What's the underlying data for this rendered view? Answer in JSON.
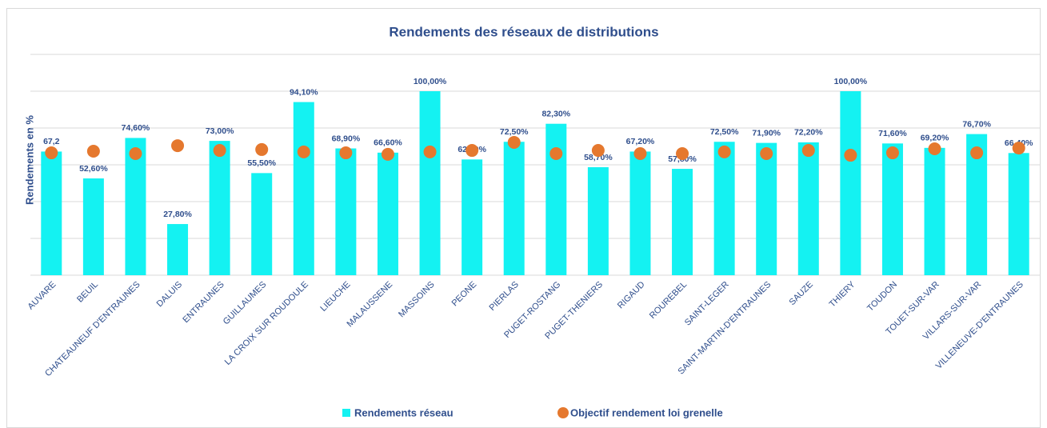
{
  "chart_data": {
    "type": "bar",
    "title": "Rendements des réseaux de distributions",
    "y_label": "Rendements en %",
    "categories": [
      "AUVARE",
      "BEUIL",
      "CHATEAUNEUF D'ENTRAUNES",
      "DALUIS",
      "ENTRAUNES",
      "GUILLAUMES",
      "LA CROIX SUR ROUDOULE",
      "LIEUCHE",
      "MALAUSSENE",
      "MASSOINS",
      "PEONE",
      "PIERLAS",
      "PUGET-ROSTANG",
      "PUGET-THENIERS",
      "RIGAUD",
      "ROUREBEL",
      "SAINT-LEGER",
      "SAINT-MARTIN-D'ENTRAUNES",
      "SAUZE",
      "THIERY",
      "TOUDON",
      "TOUET-SUR-VAR",
      "VILLARS-SUR-VAR",
      "VILLENEUVE-D'ENTRAUNES"
    ],
    "series": [
      {
        "name": "Rendements réseau",
        "color": "#14f2f2",
        "type": "bar",
        "values": [
          67.2,
          52.6,
          74.6,
          27.8,
          73.0,
          55.5,
          94.1,
          68.9,
          66.6,
          100.0,
          62.9,
          72.5,
          82.3,
          58.7,
          67.2,
          57.8,
          72.5,
          71.9,
          72.2,
          100.0,
          71.6,
          69.2,
          76.7,
          66.4
        ],
        "value_labels": [
          "67,2",
          "52,60%",
          "74,60%",
          "27,80%",
          "73,00%",
          "55,50%",
          "94,10%",
          "68,90%",
          "66,60%",
          "100,00%",
          "62,90%",
          "72,50%",
          "82,30%",
          "58,70%",
          "67,20%",
          "57,80%",
          "72,50%",
          "71,90%",
          "72,20%",
          "100,00%",
          "71,60%",
          "69,20%",
          "76,70%",
          "66,40%"
        ]
      },
      {
        "name": "Objectif rendement loi grenelle",
        "color": "#e5782e",
        "type": "scatter",
        "values": [
          66.5,
          67.4,
          66.1,
          70.4,
          67.8,
          68.3,
          67.0,
          66.5,
          65.7,
          67.0,
          67.8,
          72.2,
          66.1,
          67.8,
          66.1,
          66.1,
          67.0,
          66.1,
          67.8,
          65.2,
          66.5,
          68.7,
          66.5,
          69.1
        ]
      }
    ],
    "ylim": [
      0,
      120
    ],
    "yticks": [
      0,
      20,
      40,
      60,
      80,
      100,
      120
    ],
    "grid": true,
    "legend": "bottom"
  }
}
